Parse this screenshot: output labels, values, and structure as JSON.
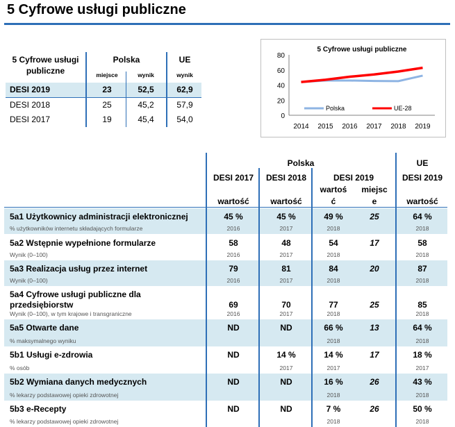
{
  "title": "5 Cyfrowe usługi publiczne",
  "summary": {
    "col_label_line1": "5 Cyfrowe usługi",
    "col_label_line2": "publiczne",
    "polska": "Polska",
    "ue": "UE",
    "miejsce": "miejsce",
    "wynik": "wynik",
    "wynik_ue": "wynik",
    "rows": [
      {
        "label": "DESI 2019",
        "miejsce": "23",
        "wynik": "52,5",
        "ue": "62,9"
      },
      {
        "label": "DESI 2018",
        "miejsce": "25",
        "wynik": "45,2",
        "ue": "57,9"
      },
      {
        "label": "DESI 2017",
        "miejsce": "19",
        "wynik": "45,4",
        "ue": "54,0"
      }
    ]
  },
  "chart_data": {
    "type": "line",
    "title": "5 Cyfrowe usługi publiczne",
    "x": [
      "2014",
      "2015",
      "2016",
      "2017",
      "2018",
      "2019"
    ],
    "ylim": [
      0,
      80
    ],
    "yticks": [
      "0",
      "20",
      "40",
      "60",
      "80"
    ],
    "series": [
      {
        "name": "Polska",
        "color": "#8eb4e3",
        "values": [
          44,
          46,
          46,
          45.4,
          45.2,
          52.5
        ]
      },
      {
        "name": "UE-28",
        "color": "#ff0000",
        "values": [
          44,
          47,
          51,
          54,
          57.9,
          62.9
        ]
      }
    ],
    "legend_position": "bottom"
  },
  "big_table": {
    "polska": "Polska",
    "ue": "UE",
    "desi2017": "DESI 2017",
    "desi2018": "DESI 2018",
    "desi2019": "DESI 2019",
    "desi2019_ue": "DESI 2019",
    "wartosc_2017": "wartość",
    "wartosc_2018": "wartość",
    "wartosc_2019_l1": "wartoś",
    "wartosc_2019_l2": "ć",
    "miejsce_l1": "miejsc",
    "miejsce_l2": "e",
    "wartosc_ue": "wartość",
    "rows": [
      {
        "label": "5a1 Użytkownicy administracji elektronicznej",
        "label2": "",
        "sub": "% użytkowników internetu składających formularze",
        "v17": "45 %",
        "y17": "2016",
        "v18": "45 %",
        "y18": "2017",
        "v19": "49 %",
        "y19": "2018",
        "rank": "25",
        "vue": "64 %",
        "yue": "2018"
      },
      {
        "label": "5a2 Wstępnie wypełnione formularze",
        "label2": "",
        "sub": "Wynik (0–100)",
        "v17": "58",
        "y17": "2016",
        "v18": "48",
        "y18": "2017",
        "v19": "54",
        "y19": "2018",
        "rank": "17",
        "vue": "58",
        "yue": "2018"
      },
      {
        "label": "5a3 Realizacja usług przez internet",
        "label2": "",
        "sub": "Wynik (0–100)",
        "v17": "79",
        "y17": "2016",
        "v18": "81",
        "y18": "2017",
        "v19": "84",
        "y19": "2018",
        "rank": "20",
        "vue": "87",
        "yue": "2018"
      },
      {
        "label": "5a4 Cyfrowe usługi publiczne dla",
        "label2": "przedsiębiorstw",
        "sub": "Wynik (0–100), w tym krajowe i transgraniczne",
        "v17": "69",
        "y17": "2016",
        "v18": "70",
        "y18": "2017",
        "v19": "77",
        "y19": "2018",
        "rank": "25",
        "vue": "85",
        "yue": "2018"
      },
      {
        "label": "5a5 Otwarte dane",
        "label2": "",
        "sub": "% maksymalnego wyniku",
        "v17": "ND",
        "y17": "",
        "v18": "ND",
        "y18": "",
        "v19": "66 %",
        "y19": "2018",
        "rank": "13",
        "vue": "64 %",
        "yue": "2018"
      },
      {
        "label": "5b1 Usługi e-zdrowia",
        "label2": "",
        "sub": "% osób",
        "v17": "ND",
        "y17": "",
        "v18": "14 %",
        "y18": "2017",
        "v19": "14 %",
        "y19": "2017",
        "rank": "17",
        "vue": "18 %",
        "yue": "2017"
      },
      {
        "label": "5b2 Wymiana danych medycznych",
        "label2": "",
        "sub": "% lekarzy podstawowej opieki zdrowotnej",
        "v17": "ND",
        "y17": "",
        "v18": "ND",
        "y18": "",
        "v19": "16 %",
        "y19": "2018",
        "rank": "26",
        "vue": "43 %",
        "yue": "2018"
      },
      {
        "label": "5b3 e-Recepty",
        "label2": "",
        "sub": "% lekarzy podstawowej opieki zdrowotnej",
        "v17": "ND",
        "y17": "",
        "v18": "ND",
        "y18": "",
        "v19": "7 %",
        "y19": "2018",
        "rank": "26",
        "vue": "50 %",
        "yue": "2018"
      }
    ]
  }
}
